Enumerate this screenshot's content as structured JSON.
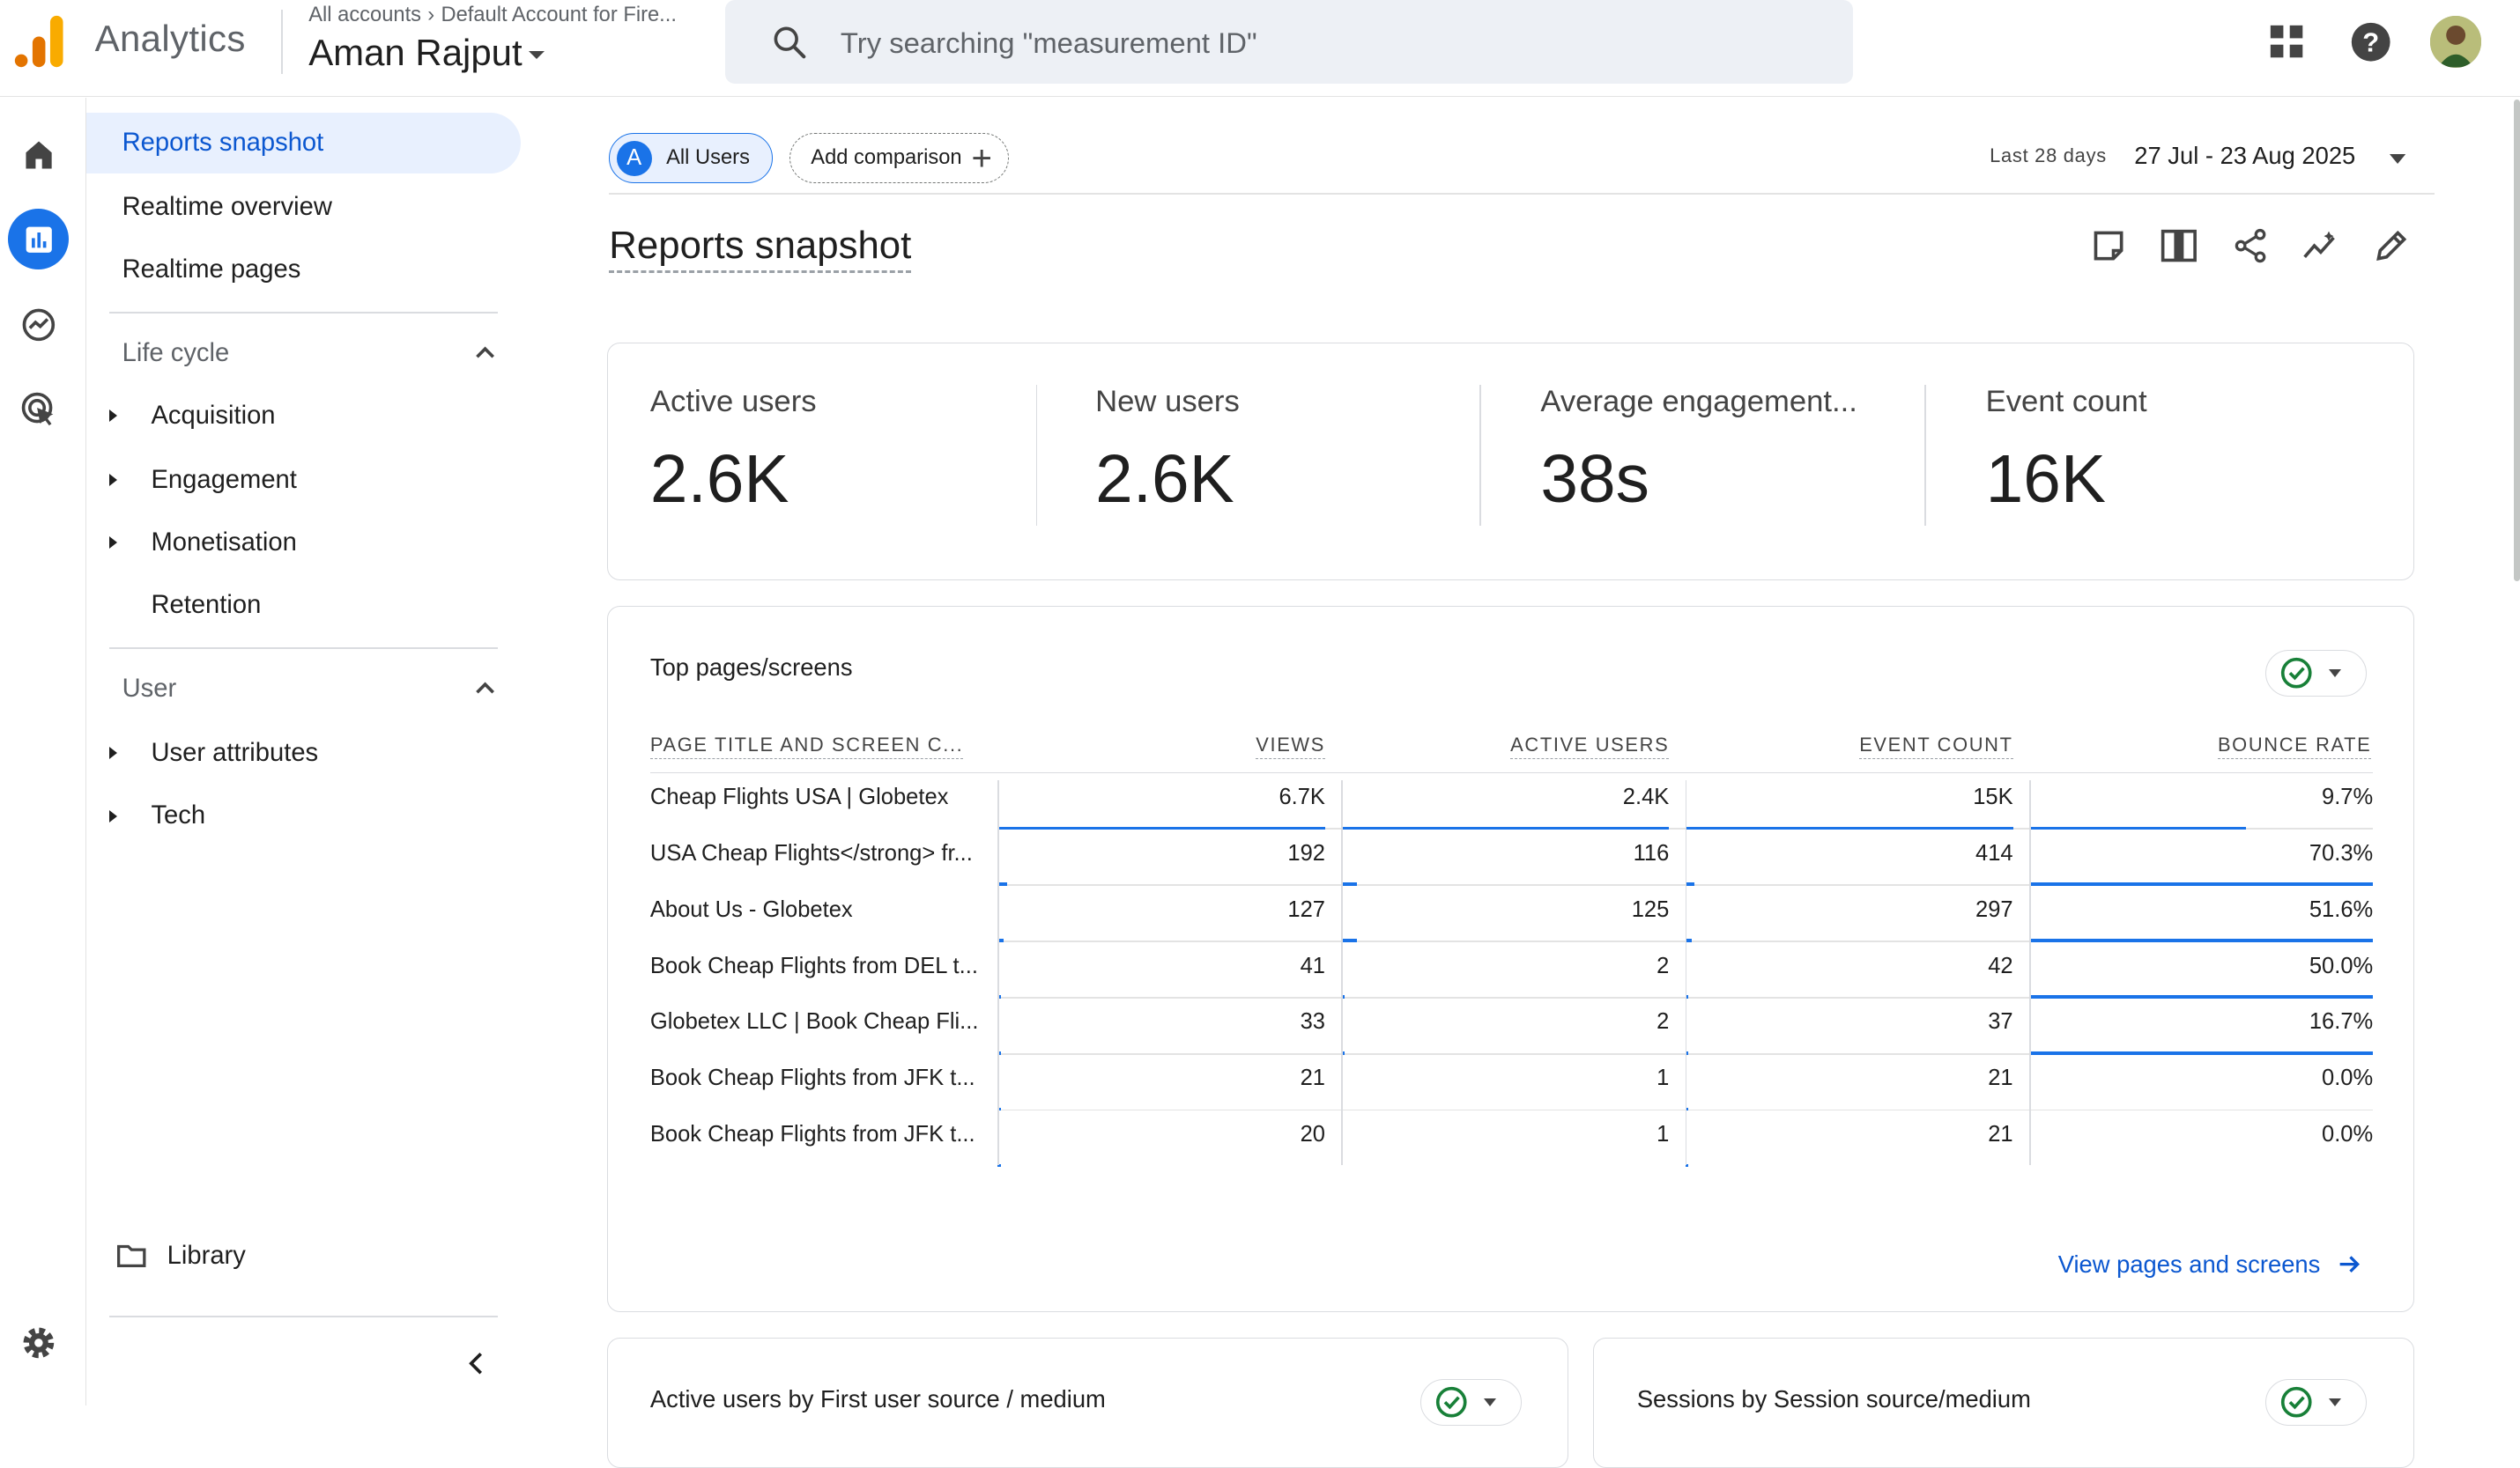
{
  "header": {
    "app_name": "Analytics",
    "breadcrumb_root": "All accounts",
    "breadcrumb_account": "Default Account for Fire...",
    "property_name": "Aman Rajput",
    "search_placeholder": "Try searching \"measurement ID\""
  },
  "nav": {
    "reports_snapshot": "Reports snapshot",
    "realtime_overview": "Realtime overview",
    "realtime_pages": "Realtime pages",
    "lifecycle_title": "Life cycle",
    "lifecycle_items": [
      "Acquisition",
      "Engagement",
      "Monetisation",
      "Retention"
    ],
    "user_title": "User",
    "user_items": [
      "User attributes",
      "Tech"
    ],
    "library": "Library"
  },
  "toolbar": {
    "all_users": "All Users",
    "all_users_badge": "A",
    "add_comparison": "Add comparison",
    "date_label": "Last 28 days",
    "date_range": "27 Jul - 23 Aug 2025",
    "page_title": "Reports snapshot"
  },
  "metrics": [
    {
      "name": "Active users",
      "value": "2.6K"
    },
    {
      "name": "New users",
      "value": "2.6K"
    },
    {
      "name": "Average engagement...",
      "value": "38s"
    },
    {
      "name": "Event count",
      "value": "16K"
    }
  ],
  "top_pages": {
    "title": "Top pages/screens",
    "columns": [
      "PAGE TITLE AND SCREEN C...",
      "VIEWS",
      "ACTIVE USERS",
      "EVENT COUNT",
      "BOUNCE RATE"
    ],
    "rows": [
      {
        "name": "Cheap Flights USA | Globetex",
        "views": "6.7K",
        "active": "2.4K",
        "events": "15K",
        "bounce": "9.7%",
        "bars": [
          1.0,
          1.0,
          1.0,
          0.63
        ]
      },
      {
        "name": "USA Cheap Flights</strong> fr...",
        "views": "192",
        "active": "116",
        "events": "414",
        "bounce": "70.3%",
        "bars": [
          0.03,
          0.05,
          0.03,
          1.0
        ]
      },
      {
        "name": "About Us - Globetex",
        "views": "127",
        "active": "125",
        "events": "297",
        "bounce": "51.6%",
        "bars": [
          0.02,
          0.05,
          0.02,
          1.0
        ]
      },
      {
        "name": "Book Cheap Flights from DEL t...",
        "views": "41",
        "active": "2",
        "events": "42",
        "bounce": "50.0%",
        "bars": [
          0.006,
          0.001,
          0.003,
          1.0
        ]
      },
      {
        "name": "Globetex LLC | Book Cheap Fli...",
        "views": "33",
        "active": "2",
        "events": "37",
        "bounce": "16.7%",
        "bars": [
          0.005,
          0.001,
          0.002,
          1.0
        ]
      },
      {
        "name": "Book Cheap Flights from JFK t...",
        "views": "21",
        "active": "1",
        "events": "21",
        "bounce": "0.0%",
        "bars": [
          0.003,
          0.0,
          0.001,
          0.0
        ]
      },
      {
        "name": "Book Cheap Flights from JFK t...",
        "views": "20",
        "active": "1",
        "events": "21",
        "bounce": "0.0%",
        "bars": [
          0.003,
          0.0,
          0.001,
          0.0
        ]
      }
    ],
    "view_link": "View pages and screens"
  },
  "bottom_cards": {
    "left_title": "Active users by First user source / medium",
    "right_title": "Sessions by Session source/medium"
  },
  "colors": {
    "accent": "#1a73e8",
    "link": "#0b57d0"
  }
}
